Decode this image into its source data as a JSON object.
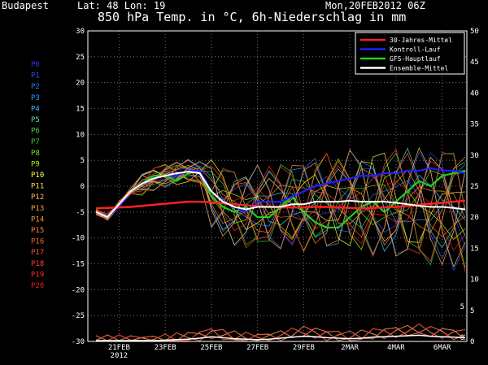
{
  "header": {
    "location": "Budapest",
    "coords": "Lat: 48 Lon: 19",
    "run": "Mon,20FEB2012 06Z",
    "title": "850 hPa Temp. in °C, 6h-Niederschlag in mm"
  },
  "members": [
    "P0",
    "P1",
    "P2",
    "P3",
    "P4",
    "P5",
    "P6",
    "P7",
    "P8",
    "P9",
    "P10",
    "P11",
    "P12",
    "P13",
    "P14",
    "P15",
    "P16",
    "P17",
    "P18",
    "P19",
    "P20"
  ],
  "member_colors": [
    "#3030ff",
    "#3050ff",
    "#3070ff",
    "#2fa0ff",
    "#40c0ff",
    "#60d0d0",
    "#40d040",
    "#30d030",
    "#80e000",
    "#b0f000",
    "#ffff40",
    "#ffe040",
    "#ffc040",
    "#ffa040",
    "#ff9030",
    "#ff8030",
    "#ff6030",
    "#ff5030",
    "#ff4030",
    "#ff3030",
    "#e02020"
  ],
  "chart_data": {
    "type": "line",
    "x_tick_labels": [
      "21FEB",
      "23FEB",
      "25FEB",
      "27FEB",
      "29FEB",
      "2MAR",
      "4MAR",
      "6MAR"
    ],
    "x_year_label": "2012",
    "left_axis": {
      "ylim": [
        -30,
        30
      ],
      "ticks": [
        30,
        25,
        20,
        15,
        10,
        5,
        0,
        -5,
        -10,
        -15,
        -20,
        -25,
        -30
      ]
    },
    "right_axis": {
      "ylim": [
        0,
        50
      ],
      "ticks": [
        50,
        45,
        40,
        35,
        30,
        25,
        20,
        15,
        10,
        5,
        0
      ]
    },
    "right_inner_ticks": [
      5,
      0
    ],
    "grid": true,
    "legend": [
      {
        "name": "30-Jahres-Mittel",
        "color": "#ff2020"
      },
      {
        "name": "Kontroll-Lauf",
        "color": "#2020ff"
      },
      {
        "name": "GFS-Hauptlauf",
        "color": "#20d020"
      },
      {
        "name": "Ensemble-Mittel",
        "color": "#ffffff"
      }
    ],
    "x": [
      0,
      0.5,
      1,
      1.5,
      2,
      2.5,
      3,
      3.5,
      4,
      4.5,
      5,
      5.5,
      6,
      6.5,
      7,
      7.5,
      8,
      8.5,
      9,
      9.5,
      10,
      10.5,
      11,
      11.5,
      12,
      12.5,
      13,
      13.5,
      14,
      14.5,
      15,
      15.5,
      16
    ],
    "climate_mean": [
      -4.3,
      -4.2,
      -4.1,
      -4.0,
      -3.8,
      -3.6,
      -3.4,
      -3.2,
      -3.0,
      -3.0,
      -3.1,
      -3.3,
      -3.5,
      -3.7,
      -3.9,
      -4.0,
      -4.1,
      -4.1,
      -4.1,
      -4.0,
      -4.0,
      -4.1,
      -4.2,
      -4.3,
      -4.2,
      -4.1,
      -4.0,
      -3.8,
      -3.6,
      -3.4,
      -3.2,
      -3.0,
      -2.8
    ],
    "control_run": [
      -5,
      -6,
      -4,
      -1,
      0.5,
      1.5,
      2,
      2,
      3,
      3,
      -1,
      -3,
      -4,
      -5,
      -3,
      -3,
      -3,
      -2,
      -1,
      0,
      0.5,
      1,
      1.5,
      2,
      2,
      2.5,
      2.5,
      3,
      3,
      3.5,
      3,
      3,
      2.5
    ],
    "gfs_run": [
      -5,
      -6,
      -4,
      -1,
      0.5,
      2,
      2,
      1,
      2.5,
      3,
      -2,
      -4,
      -5,
      -4,
      -6,
      -6,
      -4,
      -2,
      -5,
      -7,
      -8,
      -8,
      -6,
      -4,
      -3,
      -5,
      -3,
      -1,
      1,
      0,
      2,
      2.5,
      3
    ],
    "ensemble_mean": [
      -5,
      -6,
      -3.5,
      -1,
      0.5,
      1.5,
      2,
      2.5,
      2.8,
      2.5,
      -1,
      -3,
      -4,
      -4.5,
      -4,
      -4,
      -4,
      -3.5,
      -3.5,
      -3,
      -3,
      -3,
      -2.8,
      -3,
      -3,
      -3,
      -3.2,
      -3.5,
      -3.8,
      -4,
      -4,
      -4.2,
      -4.5
    ],
    "precip_mean": [
      0,
      0,
      0,
      0,
      0,
      0,
      0.1,
      0.2,
      0.3,
      0.5,
      0.8,
      0.6,
      0.4,
      0.3,
      0.2,
      0.3,
      0.5,
      0.7,
      0.9,
      0.8,
      0.6,
      0.5,
      0.4,
      0.5,
      0.7,
      0.8,
      0.9,
      1.0,
      1.1,
      0.9,
      0.8,
      0.7,
      0.6
    ]
  }
}
